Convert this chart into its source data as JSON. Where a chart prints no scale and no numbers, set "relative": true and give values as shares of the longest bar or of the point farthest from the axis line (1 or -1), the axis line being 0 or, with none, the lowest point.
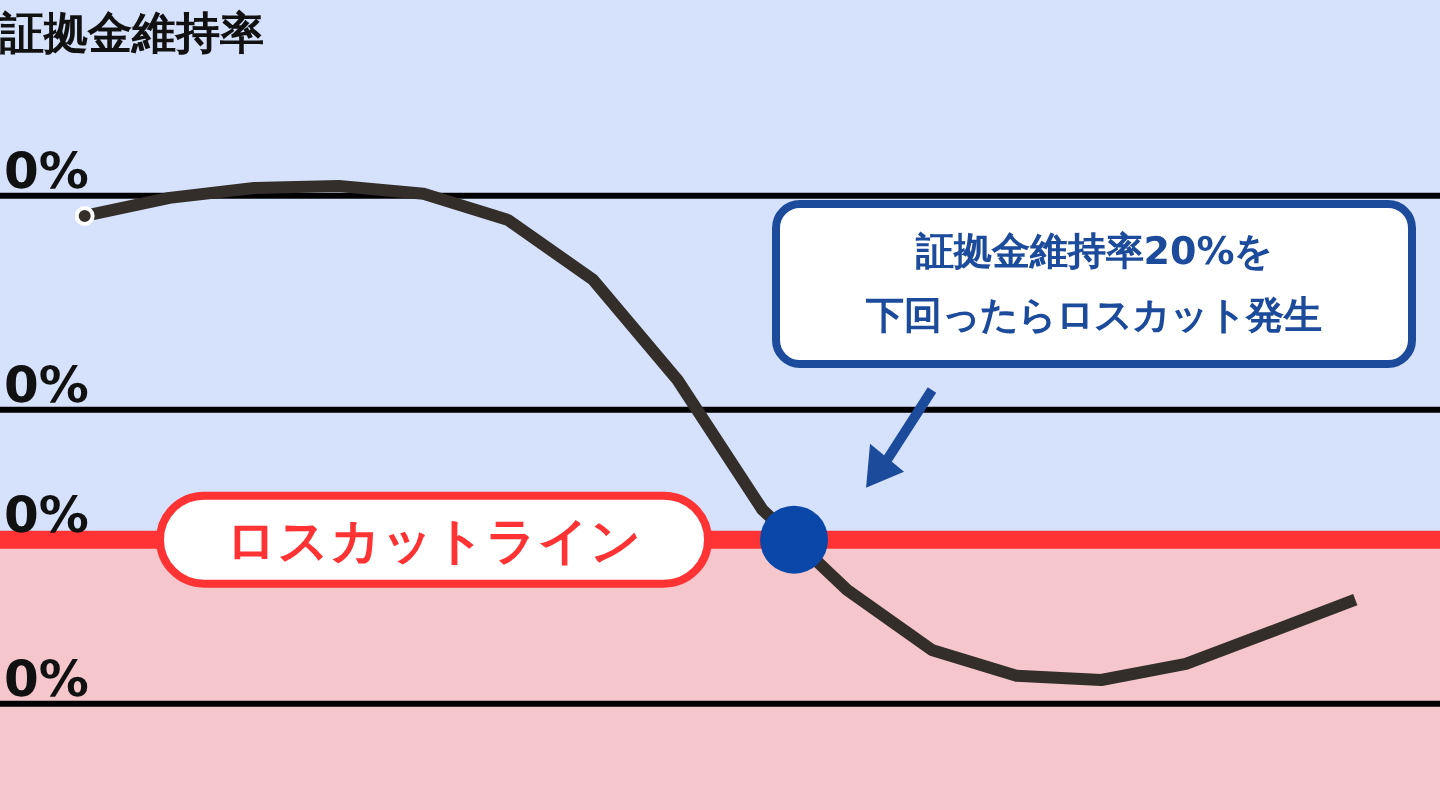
{
  "chart_data": {
    "type": "line",
    "title": "証拠金維持率",
    "relative": true,
    "categories": [
      null,
      null,
      null,
      null,
      null,
      null,
      null,
      null,
      null,
      null,
      null,
      null,
      null,
      null,
      null,
      null
    ],
    "series": [
      {
        "color": "#342e2b",
        "values": [
          0.942,
          0.977,
          0.996,
          1.0,
          0.985,
          0.934,
          0.819,
          0.625,
          0.375,
          0.22,
          0.104,
          0.054,
          0.046,
          0.077,
          0.139,
          0.201
        ]
      }
    ],
    "marker": "none",
    "ref_lines": [
      {
        "axis": "y",
        "value": 0.981,
        "color": "#000000"
      },
      {
        "axis": "y",
        "value": 0.568,
        "color": "#000000"
      },
      {
        "axis": "y",
        "value": 0.317,
        "color": "#ff3333",
        "label": "ロスカットライン"
      },
      {
        "axis": "y",
        "value": 0,
        "color": "#000000"
      }
    ],
    "bands": [
      {
        "axis": "y",
        "from": 0.317,
        "to": 1.359,
        "color": "#d6e2fc"
      },
      {
        "axis": "y",
        "from": -0.205,
        "to": 0.317,
        "color": "#f5c6cc"
      }
    ],
    "annotations": [
      "証拠金維持率20%を下回ったらロスカット発生",
      {
        "text": "0%",
        "y": 0.981
      },
      {
        "text": "0%",
        "y": 0.568
      },
      {
        "text": "0%",
        "y": 0.317
      },
      {
        "text": "0%",
        "y": 0
      }
    ]
  }
}
